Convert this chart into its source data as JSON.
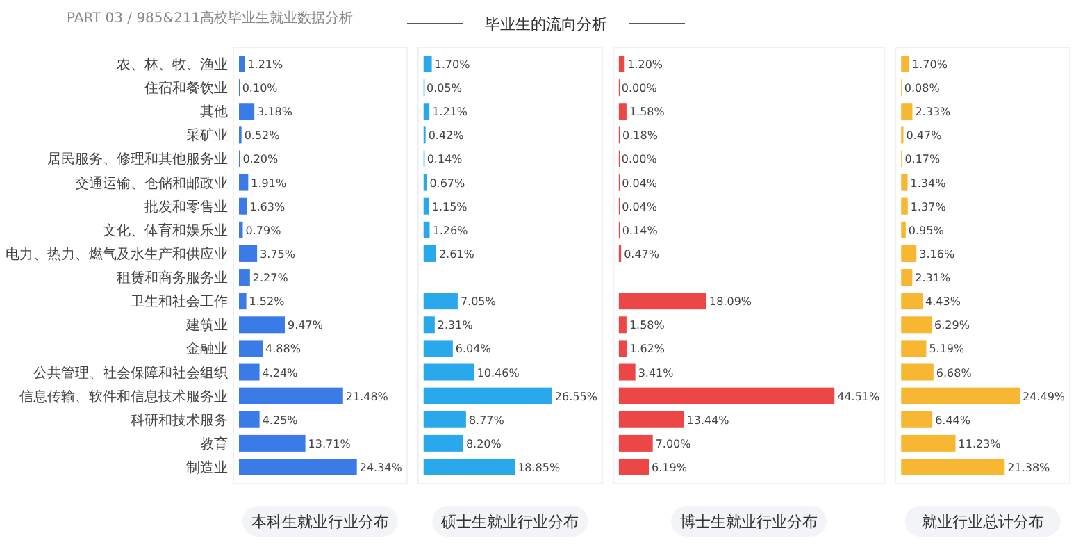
{
  "chart_data": [
    {
      "type": "bar",
      "orientation": "horizontal",
      "xlabel": "本科生就业行业分布",
      "color": "#3b7be8",
      "tick_labels": "y",
      "annotations": [
        "PART 03 / 985&211高校毕业生就业数据分析",
        "毕业生的流向分析"
      ],
      "categories": [
        "农、林、牧、渔业",
        "住宿和餐饮业",
        "其他",
        "采矿业",
        "居民服务、修理和其他服务业",
        "交通运输、仓储和邮政业",
        "批发和零售业",
        "文化、体育和娱乐业",
        "电力、热力、燃气及水生产和供应业",
        "租赁和商务服务业",
        "卫生和社会工作",
        "建筑业",
        "金融业",
        "公共管理、社会保障和社会组织",
        "信息传输、软件和信息技术服务业",
        "科研和技术服务",
        "教育",
        "制造业"
      ],
      "values": [
        1.21,
        0.1,
        3.18,
        0.52,
        0.2,
        1.91,
        1.63,
        0.79,
        3.75,
        2.27,
        1.52,
        9.47,
        4.88,
        4.24,
        21.48,
        4.25,
        13.71,
        24.34
      ],
      "value_labels": [
        "1.21%",
        "0.10%",
        "3.18%",
        "0.52%",
        "0.20%",
        "1.91%",
        "1.63%",
        "0.79%",
        "3.75%",
        "2.27%",
        "1.52%",
        "9.47%",
        "4.88%",
        "4.24%",
        "21.48%",
        "4.25%",
        "13.71%",
        "24.34%"
      ]
    },
    {
      "type": "bar",
      "orientation": "horizontal",
      "xlabel": "硕士生就业行业分布",
      "color": "#29a9ec",
      "tick_labels": false,
      "categories": [
        null,
        null,
        null,
        null,
        null,
        null,
        null,
        null,
        null,
        null,
        null,
        null,
        null,
        null,
        null,
        null,
        null,
        null
      ],
      "values": [
        1.7,
        0.05,
        1.21,
        0.42,
        0.14,
        0.67,
        1.15,
        1.26,
        2.61,
        null,
        7.05,
        2.31,
        6.04,
        10.46,
        26.55,
        8.77,
        8.2,
        18.85
      ],
      "value_labels": [
        "1.70%",
        "0.05%",
        "1.21%",
        "0.42%",
        "0.14%",
        "0.67%",
        "1.15%",
        "1.26%",
        "2.61%",
        null,
        "7.05%",
        "2.31%",
        "6.04%",
        "10.46%",
        "26.55%",
        "8.77%",
        "8.20%",
        "18.85%"
      ]
    },
    {
      "type": "bar",
      "orientation": "horizontal",
      "xlabel": "博士生就业行业分布",
      "color": "#ec4646",
      "tick_labels": false,
      "categories": [
        null,
        null,
        null,
        null,
        null,
        null,
        null,
        null,
        null,
        null,
        null,
        null,
        null,
        null,
        null,
        null,
        null,
        null
      ],
      "values": [
        1.2,
        0.0,
        1.58,
        0.18,
        0.0,
        0.04,
        0.04,
        0.14,
        0.47,
        null,
        18.09,
        1.58,
        1.62,
        3.41,
        44.51,
        13.44,
        7.0,
        6.19
      ],
      "value_labels": [
        "1.20%",
        "0.00%",
        "1.58%",
        "0.18%",
        "0.00%",
        "0.04%",
        "0.04%",
        "0.14%",
        "0.47%",
        null,
        "18.09%",
        "1.58%",
        "1.62%",
        "3.41%",
        "44.51%",
        "13.44%",
        "7.00%",
        "6.19%"
      ]
    },
    {
      "type": "bar",
      "orientation": "horizontal",
      "xlabel": "就业行业总计分布",
      "color": "#f7b733",
      "tick_labels": false,
      "categories": [
        null,
        null,
        null,
        null,
        null,
        null,
        null,
        null,
        null,
        null,
        null,
        null,
        null,
        null,
        null,
        null,
        null,
        null
      ],
      "values": [
        1.7,
        0.08,
        2.33,
        0.47,
        0.17,
        1.34,
        1.37,
        0.95,
        3.16,
        2.31,
        4.43,
        6.29,
        5.19,
        6.68,
        24.49,
        6.44,
        11.23,
        21.38
      ],
      "value_labels": [
        "1.70%",
        "0.08%",
        "2.33%",
        "0.47%",
        "0.17%",
        "1.34%",
        "1.37%",
        "0.95%",
        "3.16%",
        "2.31%",
        "4.43%",
        "6.29%",
        "5.19%",
        "6.68%",
        "24.49%",
        "6.44%",
        "11.23%",
        "21.38%"
      ]
    }
  ]
}
